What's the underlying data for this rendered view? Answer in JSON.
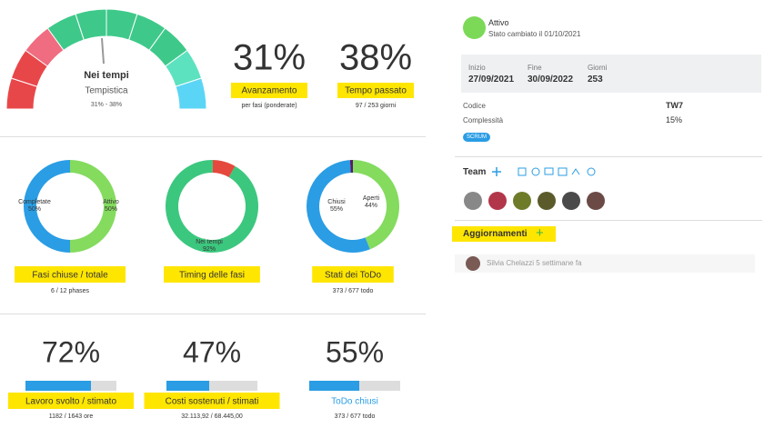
{
  "gauge": {
    "status": "Nei tempi",
    "label": "Tempistica",
    "range": "31% - 38%"
  },
  "kpis": [
    {
      "value": 31,
      "value_label": "31%",
      "label": "Avanzamento",
      "sub": "per fasi (ponderate)"
    },
    {
      "value": 38,
      "value_label": "38%",
      "label": "Tempo passato",
      "sub": "97 / 253 giorni"
    }
  ],
  "donuts": [
    {
      "title": "Fasi chiuse / totale",
      "sub": "6 / 12 phases",
      "segments": [
        {
          "name": "Completate",
          "value": 50,
          "value_label": "50%",
          "color": "#2a9de4"
        },
        {
          "name": "Attivo",
          "value": 50,
          "value_label": "50%",
          "color": "#84db5e"
        }
      ]
    },
    {
      "title": "Timing delle fasi",
      "segments": [
        {
          "name": "Nei tempi",
          "value": 92,
          "value_label": "92%",
          "color": "#3cc77e"
        },
        {
          "name": null,
          "value": 8,
          "color": "#e5493d"
        }
      ]
    },
    {
      "title": "Stati dei ToDo",
      "sub": "373 / 677 todo",
      "segments": [
        {
          "name": "Aperti",
          "value": 44,
          "value_label": "44%",
          "color": "#84db5e"
        },
        {
          "name": "Chiusi",
          "value": 55,
          "value_label": "55%",
          "color": "#2a9de4"
        },
        {
          "name": null,
          "value": 1,
          "color": "#5a1a6b"
        }
      ]
    }
  ],
  "bars": [
    {
      "value": 72,
      "value_label": "72%",
      "label": "Lavoro svolto / stimato",
      "sub": "1182 / 1643 ore",
      "highlight": true
    },
    {
      "value": 47,
      "value_label": "47%",
      "label": "Costi sostenuti / stimati",
      "sub": "32.113,92 / 68.445,00",
      "highlight": true
    },
    {
      "value": 55,
      "value_label": "55%",
      "label": "ToDo chiusi",
      "sub": "373 / 677 todo",
      "highlight": false
    }
  ],
  "status": {
    "name": "Attivo",
    "changed": "Stato cambiato il 01/10/2021"
  },
  "dates": [
    {
      "label": "Inizio",
      "value": "27/09/2021"
    },
    {
      "label": "Fine",
      "value": "30/09/2022"
    },
    {
      "label": "Giorni",
      "value": "253"
    }
  ],
  "details": [
    {
      "label": "Codice",
      "value": "TW7"
    },
    {
      "label": "Complessità",
      "value": "15%"
    }
  ],
  "badge": "SCRUM",
  "team": {
    "title": "Team"
  },
  "updates": {
    "title": "Aggiornamenti",
    "items": [
      {
        "author": "Silvia Chelazzi",
        "time": "5 settimane fa"
      }
    ]
  }
}
